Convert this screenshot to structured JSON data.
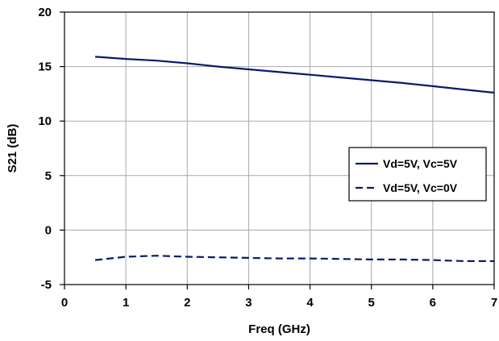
{
  "chart_data": {
    "type": "line",
    "title": "",
    "xlabel": "Freq (GHz)",
    "ylabel": "S21 (dB)",
    "xlim": [
      0,
      7
    ],
    "ylim": [
      -5,
      20
    ],
    "xticks": [
      "0",
      "1",
      "2",
      "3",
      "4",
      "5",
      "6",
      "7"
    ],
    "yticks": [
      "-5",
      "0",
      "5",
      "10",
      "15",
      "20"
    ],
    "grid": true,
    "legend": "right",
    "series": [
      {
        "name": "Vd=5V, Vc=5V",
        "style": "solid",
        "color": "#0a1a6b",
        "x": [
          0.5,
          1,
          1.5,
          2,
          2.5,
          3,
          3.5,
          4,
          4.5,
          5,
          5.5,
          6,
          6.5,
          7
        ],
        "y": [
          15.9,
          15.7,
          15.55,
          15.3,
          15.0,
          14.75,
          14.5,
          14.25,
          14.0,
          13.75,
          13.5,
          13.2,
          12.9,
          12.6
        ]
      },
      {
        "name": "Vd=5V, Vc=0V",
        "style": "dashed",
        "color": "#0a1a6b",
        "x": [
          0.5,
          1,
          1.5,
          2,
          2.5,
          3,
          3.5,
          4,
          4.5,
          5,
          5.5,
          6,
          6.5,
          7
        ],
        "y": [
          -2.75,
          -2.45,
          -2.35,
          -2.45,
          -2.5,
          -2.55,
          -2.6,
          -2.6,
          -2.65,
          -2.7,
          -2.7,
          -2.75,
          -2.85,
          -2.85
        ]
      }
    ]
  }
}
